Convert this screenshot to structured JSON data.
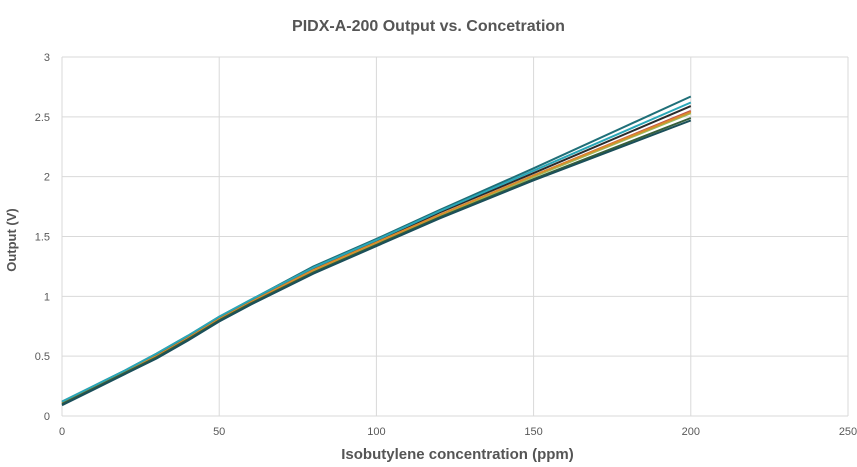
{
  "chart_data": {
    "type": "line",
    "title": "PIDX-A-200 Output vs. Concetration",
    "xlabel": "Isobutylene concentration (ppm)",
    "ylabel": "Output (V)",
    "xlim": [
      0,
      250
    ],
    "ylim": [
      0,
      3
    ],
    "xticks": [
      "0",
      "50",
      "100",
      "150",
      "200",
      "250"
    ],
    "yticks": [
      "0",
      "0.5",
      "1",
      "1.5",
      "2",
      "2.5",
      "3"
    ],
    "grid": true,
    "legend": "none",
    "x": [
      0,
      10,
      20,
      30,
      40,
      50,
      60,
      80,
      100,
      120,
      150,
      200
    ],
    "series": [
      {
        "color": "#1f6f78",
        "values": [
          0.12,
          0.25,
          0.38,
          0.52,
          0.67,
          0.83,
          0.97,
          1.25,
          1.48,
          1.72,
          2.07,
          2.67
        ]
      },
      {
        "color": "#2b2b2b",
        "values": [
          0.11,
          0.24,
          0.37,
          0.51,
          0.66,
          0.82,
          0.96,
          1.23,
          1.46,
          1.7,
          2.03,
          2.59
        ]
      },
      {
        "color": "#c0504d",
        "values": [
          0.1,
          0.23,
          0.36,
          0.5,
          0.65,
          0.81,
          0.95,
          1.22,
          1.45,
          1.68,
          2.01,
          2.55
        ]
      },
      {
        "color": "#9bbb59",
        "values": [
          0.1,
          0.23,
          0.36,
          0.49,
          0.64,
          0.8,
          0.94,
          1.21,
          1.44,
          1.67,
          2.0,
          2.53
        ]
      },
      {
        "color": "#d98c2b",
        "values": [
          0.11,
          0.24,
          0.37,
          0.5,
          0.65,
          0.81,
          0.95,
          1.22,
          1.45,
          1.68,
          2.01,
          2.54
        ]
      },
      {
        "color": "#2aa7b8",
        "values": [
          0.12,
          0.25,
          0.38,
          0.52,
          0.67,
          0.83,
          0.97,
          1.24,
          1.47,
          1.71,
          2.05,
          2.62
        ]
      },
      {
        "color": "#355e3b",
        "values": [
          0.1,
          0.23,
          0.36,
          0.49,
          0.64,
          0.8,
          0.94,
          1.2,
          1.43,
          1.66,
          1.98,
          2.49
        ]
      },
      {
        "color": "#1a4f5a",
        "values": [
          0.09,
          0.22,
          0.35,
          0.48,
          0.63,
          0.79,
          0.93,
          1.19,
          1.42,
          1.65,
          1.97,
          2.47
        ]
      }
    ]
  }
}
